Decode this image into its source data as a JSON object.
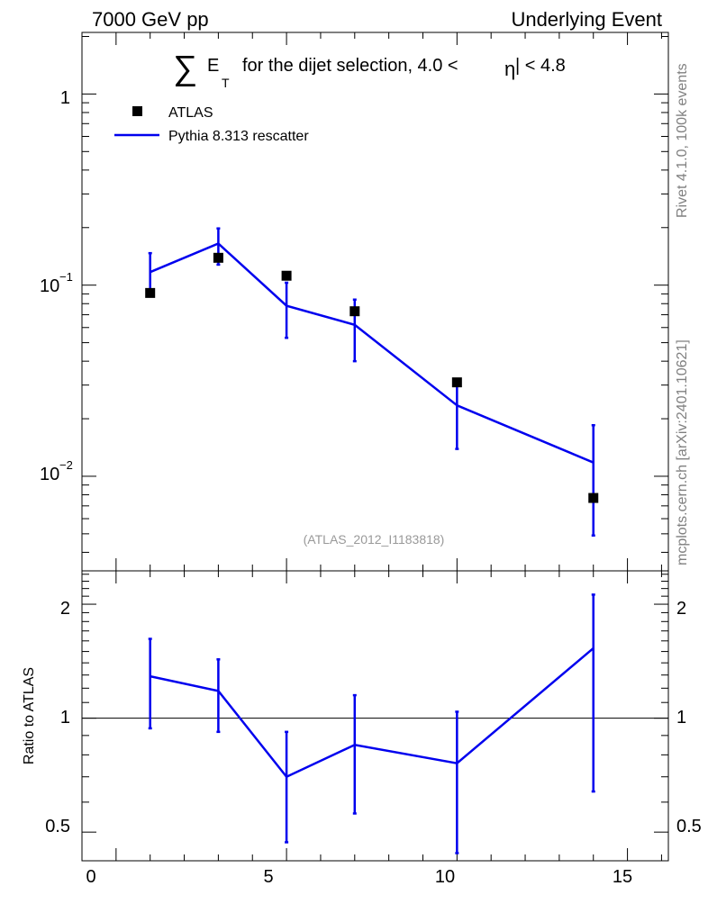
{
  "header": {
    "left": "7000 GeV pp",
    "right": "Underlying Event"
  },
  "side": {
    "rivet": "Rivet 4.1.0,  100k events",
    "mcplots": "mcplots.cern.ch [arXiv:2401.10621]"
  },
  "chart_data": {
    "type": "scatter",
    "title": {
      "sum_symbol": "∑",
      "e": "E",
      "sub": "T",
      "text_before_eta": "for the dijet selection, 4.0 <",
      "eta": "η",
      "text_after_eta": "| < 4.8"
    },
    "analysis_label": "(ATLAS_2012_I1183818)",
    "xlabel": "",
    "ylabel_ratio": "Ratio to ATLAS",
    "xlim": [
      -1,
      16.2
    ],
    "ylim_main": [
      0.0032,
      2.1
    ],
    "ylim_ratio": [
      0.42,
      2.45
    ],
    "x_ticks": [
      "0",
      "5",
      "10",
      "15"
    ],
    "y_ticks_main": [
      "1",
      "10^-1",
      "10^-2"
    ],
    "y_ticks_ratio": [
      "2",
      "1",
      "0.5"
    ],
    "legend": [
      {
        "label": "ATLAS",
        "marker": "square",
        "color": "#000000"
      },
      {
        "label": "Pythia 8.313 rescatter",
        "marker": "line",
        "color": "#0000ee"
      }
    ],
    "series": [
      {
        "name": "ATLAS",
        "x": [
          1,
          3,
          5,
          7,
          10,
          14
        ],
        "y": [
          0.091,
          0.139,
          0.112,
          0.073,
          0.031,
          0.0077
        ]
      },
      {
        "name": "Pythia 8.313 rescatter",
        "x": [
          1,
          3,
          5,
          7,
          10,
          14
        ],
        "y": [
          0.117,
          0.165,
          0.078,
          0.062,
          0.0235,
          0.0118
        ],
        "yerr_low": [
          0.093,
          0.128,
          0.053,
          0.04,
          0.0139,
          0.0049
        ],
        "yerr_high": [
          0.147,
          0.198,
          0.103,
          0.084,
          0.0317,
          0.0185
        ]
      }
    ],
    "ratio": {
      "x": [
        1,
        3,
        5,
        7,
        10,
        14
      ],
      "y": [
        1.29,
        1.18,
        0.7,
        0.85,
        0.76,
        1.53
      ],
      "err_low": [
        0.94,
        0.92,
        0.47,
        0.56,
        0.44,
        0.64
      ],
      "err_high": [
        1.62,
        1.43,
        0.92,
        1.15,
        1.04,
        2.12
      ],
      "reference": 1
    }
  }
}
